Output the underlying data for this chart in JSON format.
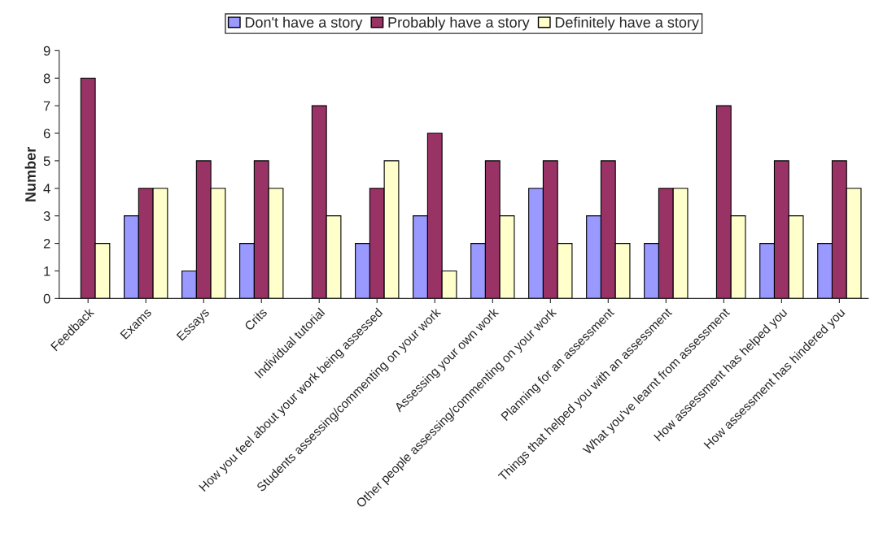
{
  "chart_data": {
    "type": "bar",
    "ylabel": "Number",
    "categories": [
      "Feedback",
      "Exams",
      "Essays",
      "Crits",
      "Individual tutorial",
      "How you feel about your work being assessed",
      "Students assessing/commenting on your work",
      "Assessing your own work",
      "Other people assessing/commenting on your work",
      "Planning for an assessment",
      "Things that helped you with an assessment",
      "What you've learnt from assessment",
      "How assessment has helped you",
      "How assessment has hindered you"
    ],
    "series": [
      {
        "name": "Don't have a story",
        "color": "#9999ff",
        "values": [
          0,
          3,
          1,
          2,
          0,
          2,
          3,
          2,
          4,
          3,
          2,
          0,
          2,
          2
        ]
      },
      {
        "name": "Probably have a story",
        "color": "#993366",
        "values": [
          8,
          4,
          5,
          5,
          7,
          4,
          6,
          5,
          5,
          5,
          4,
          7,
          5,
          5
        ]
      },
      {
        "name": "Definitely have a story",
        "color": "#ffffcc",
        "values": [
          2,
          4,
          4,
          4,
          3,
          5,
          1,
          3,
          2,
          2,
          4,
          3,
          3,
          4
        ]
      }
    ],
    "ylim": [
      0,
      9
    ],
    "yticks": [
      0,
      1,
      2,
      3,
      4,
      5,
      6,
      7,
      8,
      9
    ],
    "grid": false,
    "legend": "top"
  }
}
